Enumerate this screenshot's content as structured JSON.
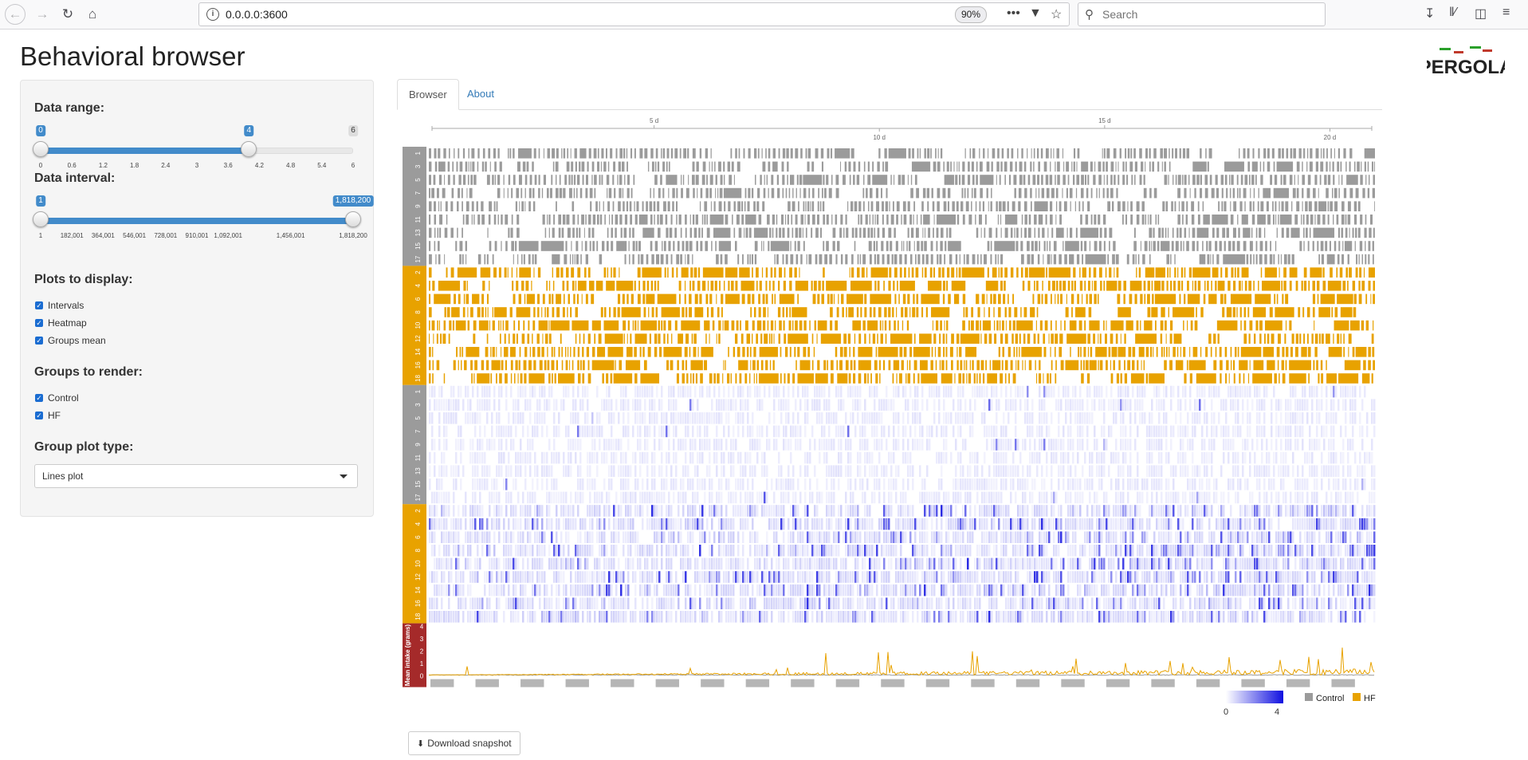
{
  "browser": {
    "url": "0.0.0.0:3600",
    "zoom": "90%",
    "search_placeholder": "Search"
  },
  "page": {
    "title": "Behavioral browser",
    "logo_text": "PERGOLA"
  },
  "sidebar": {
    "data_range": {
      "label": "Data range:",
      "min_label": "0",
      "value_label": "4",
      "max_label": "6",
      "min": 0,
      "max": 6,
      "value": 4,
      "ticks": [
        "0",
        "0.6",
        "1.2",
        "1.8",
        "2.4",
        "3",
        "3.6",
        "4.2",
        "4.8",
        "5.4",
        "6"
      ]
    },
    "data_interval": {
      "label": "Data interval:",
      "from_label": "1",
      "to_label": "1,818,200",
      "min": 1,
      "max": 1818200,
      "from": 1,
      "to": 1818200,
      "ticks": [
        "1",
        "182,001",
        "364,001",
        "546,001",
        "728,001",
        "910,001",
        "1,092,001",
        "1,456,001",
        "1,818,200"
      ]
    },
    "plots_label": "Plots to display:",
    "plots": [
      "Intervals",
      "Heatmap",
      "Groups mean"
    ],
    "groups_label": "Groups to render:",
    "groups": [
      "Control",
      "HF"
    ],
    "plot_type_label": "Group plot type:",
    "plot_type_value": "Lines plot"
  },
  "tabs": [
    "Browser",
    "About"
  ],
  "chart_data": {
    "type": "heatmap",
    "time_axis_labels": [
      "5 d",
      "10 d",
      "15 d",
      "20 d"
    ],
    "time_axis_days": [
      5,
      10,
      15,
      20
    ],
    "days_total": 21,
    "control_tracks": [
      "1",
      "3",
      "5",
      "7",
      "9",
      "11",
      "13",
      "15",
      "17"
    ],
    "hf_tracks": [
      "2",
      "4",
      "6",
      "8",
      "10",
      "12",
      "14",
      "16",
      "18"
    ],
    "mean_plot_ylabel": "Mean intake (grams)",
    "mean_plot_yticks": [
      "0",
      "1",
      "2",
      "3",
      "4"
    ],
    "mean_plot_ylim": [
      0,
      4
    ],
    "heatmap_scale": {
      "min": "0",
      "max": "4"
    },
    "legend": [
      "Control",
      "HF"
    ],
    "colors": {
      "control": "#9b9b9b",
      "hf": "#e8a200",
      "heat": "#1010e0",
      "mean_label_bg": "#a52a2a"
    }
  },
  "download_label": "Download snapshot"
}
